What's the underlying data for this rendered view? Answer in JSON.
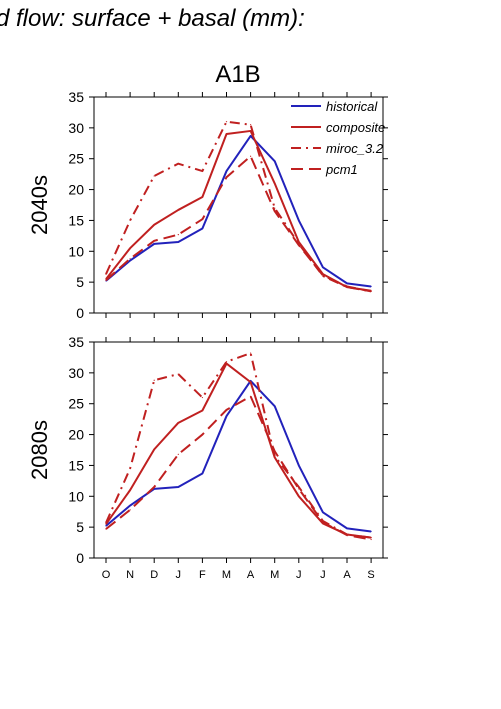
{
  "page_title": "d flow: surface + basal (mm):",
  "scenario_title": "A1B",
  "chart_data": [
    {
      "type": "line",
      "ylabel": "2040s",
      "categories": [
        "O",
        "N",
        "D",
        "J",
        "F",
        "M",
        "A",
        "M",
        "J",
        "J",
        "A",
        "S"
      ],
      "ylim": [
        0,
        35
      ],
      "yticks": [
        0,
        5,
        10,
        15,
        20,
        25,
        30,
        35
      ],
      "legend_position": "top-right",
      "series": [
        {
          "name": "historical",
          "color": "#2222bb",
          "style": "solid",
          "values": [
            5.2,
            8.5,
            11.2,
            11.5,
            13.7,
            23.0,
            28.7,
            24.6,
            15.0,
            7.4,
            4.8,
            4.3
          ]
        },
        {
          "name": "composite",
          "color": "#c02020",
          "style": "solid",
          "values": [
            5.5,
            10.5,
            14.3,
            16.7,
            18.8,
            29.0,
            29.5,
            21.0,
            11.5,
            6.3,
            4.2,
            3.6
          ]
        },
        {
          "name": "miroc_3.2",
          "color": "#c02020",
          "style": "dashdot",
          "values": [
            6.3,
            15.0,
            22.2,
            24.2,
            23.0,
            31.0,
            30.5,
            17.0,
            11.2,
            6.0,
            4.2,
            3.5
          ]
        },
        {
          "name": "pcm1",
          "color": "#c02020",
          "style": "dashed",
          "values": [
            5.3,
            8.8,
            11.7,
            12.7,
            15.2,
            22.0,
            25.4,
            16.5,
            11.0,
            6.1,
            4.3,
            3.5
          ]
        }
      ]
    },
    {
      "type": "line",
      "ylabel": "2080s",
      "categories": [
        "O",
        "N",
        "D",
        "J",
        "F",
        "M",
        "A",
        "M",
        "J",
        "J",
        "A",
        "S"
      ],
      "ylim": [
        0,
        35
      ],
      "yticks": [
        0,
        5,
        10,
        15,
        20,
        25,
        30,
        35
      ],
      "series": [
        {
          "name": "historical",
          "color": "#2222bb",
          "style": "solid",
          "values": [
            5.2,
            8.5,
            11.2,
            11.5,
            13.7,
            23.0,
            28.7,
            24.6,
            15.0,
            7.4,
            4.8,
            4.3
          ]
        },
        {
          "name": "composite",
          "color": "#c02020",
          "style": "solid",
          "values": [
            5.5,
            11.0,
            17.6,
            21.9,
            23.9,
            31.5,
            28.5,
            16.3,
            10.0,
            5.6,
            3.8,
            3.3
          ]
        },
        {
          "name": "miroc_3.2",
          "color": "#c02020",
          "style": "dashdot",
          "values": [
            5.7,
            14.5,
            28.8,
            29.8,
            26.0,
            31.8,
            33.2,
            16.5,
            11.5,
            6.0,
            3.8,
            3.3
          ]
        },
        {
          "name": "pcm1",
          "color": "#c02020",
          "style": "dashed",
          "values": [
            4.7,
            7.8,
            11.5,
            16.8,
            20.0,
            24.0,
            26.2,
            17.3,
            11.2,
            5.8,
            3.7,
            3.0
          ]
        }
      ]
    }
  ]
}
